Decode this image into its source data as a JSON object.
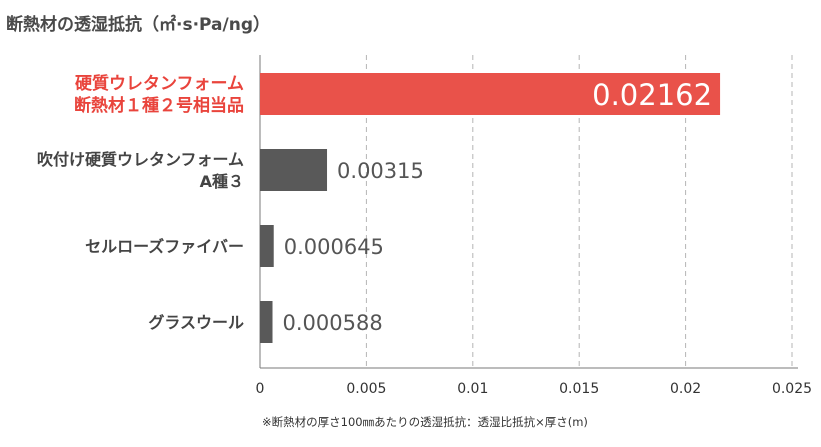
{
  "title": "断熱材の透湿抵抗（㎡·s·Pa/ng）",
  "footnote": "※断熱材の厚さ100㎜あたりの透湿抵抗：透湿比抵抗×厚さ(m)",
  "colors": {
    "highlight_bar": "#e9524a",
    "highlight_label": "#e9443c",
    "bar": "#595959",
    "label": "#444444",
    "value": "#555555",
    "highlight_value": "#ffffff",
    "grid": "#b5b5b5",
    "axis": "#7a7a7a"
  },
  "chart_data": {
    "type": "bar",
    "orientation": "horizontal",
    "title": "断熱材の透湿抵抗（㎡·s·Pa/ng）",
    "categories": [
      [
        "硬質ウレタンフォーム",
        "断熱材１種２号相当品"
      ],
      [
        "吹付け硬質ウレタンフォーム",
        "A種３"
      ],
      [
        "セルローズファイバー"
      ],
      [
        "グラスウール"
      ]
    ],
    "values": [
      0.02162,
      0.00315,
      0.000645,
      0.000588
    ],
    "value_labels": [
      "0.02162",
      "0.00315",
      "0.000645",
      "0.000588"
    ],
    "highlight_index": 0,
    "xlim": [
      0,
      0.025
    ],
    "xticks": [
      0,
      0.005,
      0.01,
      0.015,
      0.02,
      0.025
    ],
    "xtick_labels": [
      "0",
      "0.005",
      "0.01",
      "0.015",
      "0.02",
      "0.025"
    ],
    "grid": "vertical dashed",
    "legend": "none"
  }
}
